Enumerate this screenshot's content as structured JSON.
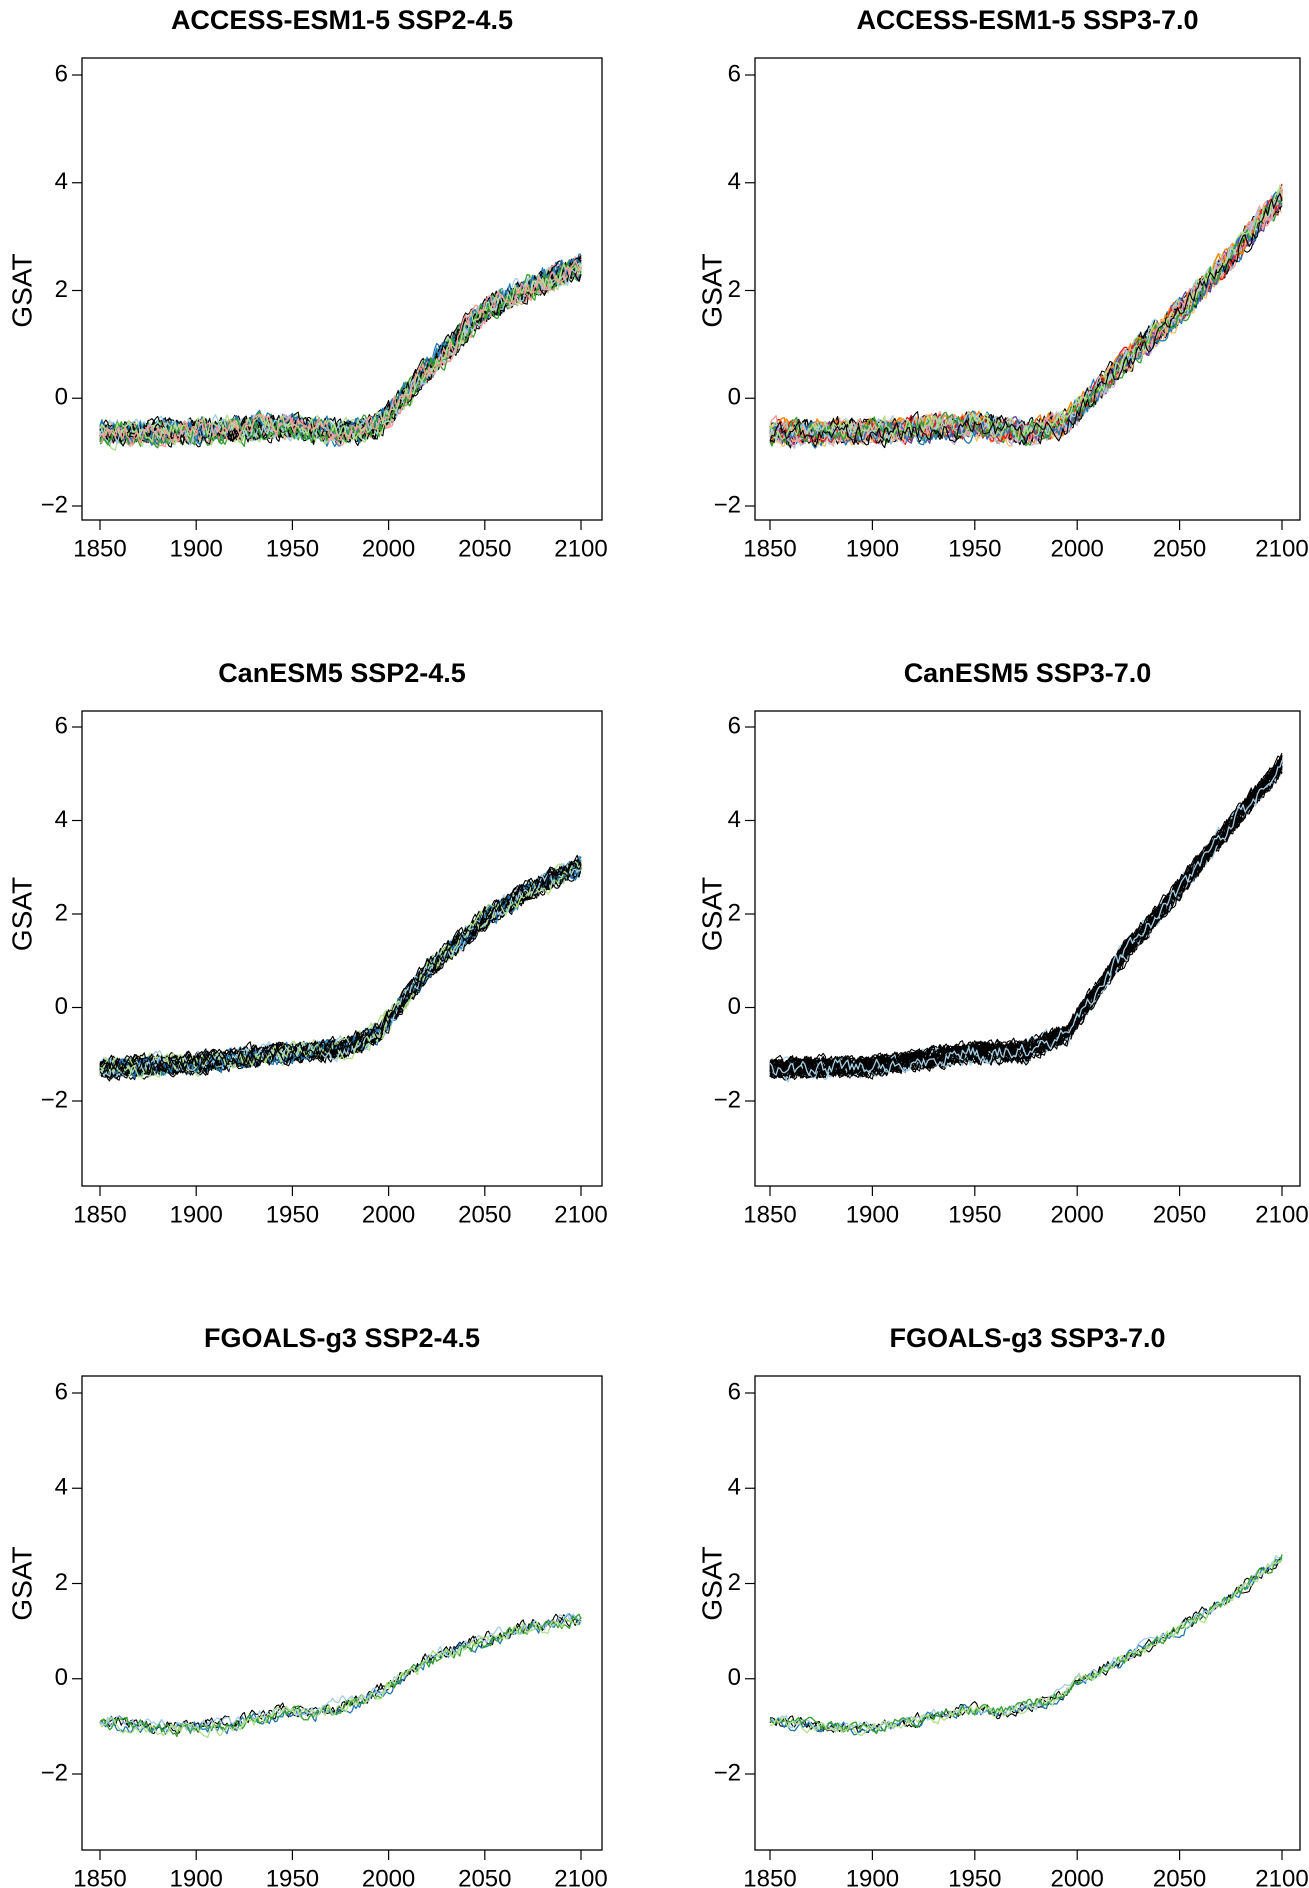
{
  "chart_data": [
    {
      "type": "line",
      "title": "ACCESS-ESM1-5 SSP2-4.5",
      "xlabel": "",
      "ylabel": "GSAT",
      "xlim": [
        1843,
        2110
      ],
      "ylim": [
        -2.3,
        6.3
      ],
      "xticks": [
        1850,
        1900,
        1950,
        2000,
        2050,
        2100
      ],
      "yticks": [
        -2,
        0,
        2,
        4,
        6
      ],
      "xtick_labels": [
        "1850",
        "1900",
        "1950",
        "2000",
        "2050",
        "2100"
      ],
      "ytick_labels": [
        "−2",
        "0",
        "2",
        "4",
        "6"
      ],
      "grid": false,
      "legend": "none",
      "ensemble_count": 40,
      "noise_amplitude": 0.14,
      "trend": {
        "x": [
          1850,
          1900,
          1950,
          1975,
          1995,
          2020,
          2050,
          2075,
          2100
        ],
        "y": [
          -0.65,
          -0.6,
          -0.52,
          -0.65,
          -0.5,
          0.5,
          1.65,
          2.1,
          2.45
        ]
      },
      "series_colors": [
        "#000000",
        "#000000",
        "#000000",
        "#1f78b4",
        "#a6cee3",
        "#33a02c",
        "#b2df8a",
        "#fb9a99"
      ]
    },
    {
      "type": "line",
      "title": "ACCESS-ESM1-5 SSP3-7.0",
      "xlabel": "",
      "ylabel": "GSAT",
      "xlim": [
        1843,
        2110
      ],
      "ylim": [
        -2.3,
        6.3
      ],
      "xticks": [
        1850,
        1900,
        1950,
        2000,
        2050,
        2100
      ],
      "yticks": [
        -2,
        0,
        2,
        4,
        6
      ],
      "xtick_labels": [
        "1850",
        "1900",
        "1950",
        "2000",
        "2050",
        "2100"
      ],
      "ytick_labels": [
        "−2",
        "0",
        "2",
        "4",
        "6"
      ],
      "grid": false,
      "legend": "none",
      "ensemble_count": 40,
      "noise_amplitude": 0.14,
      "trend": {
        "x": [
          1850,
          1900,
          1950,
          1975,
          1995,
          2020,
          2050,
          2075,
          2100
        ],
        "y": [
          -0.65,
          -0.62,
          -0.5,
          -0.65,
          -0.45,
          0.55,
          1.6,
          2.6,
          3.75
        ]
      },
      "series_colors": [
        "#000000",
        "#000000",
        "#000000",
        "#ff7f00",
        "#fdbf6f",
        "#6a3d9a",
        "#cab2d6",
        "#e31a1c",
        "#fb9a99",
        "#1f78b4",
        "#a6cee3",
        "#33a02c",
        "#b2df8a"
      ]
    },
    {
      "type": "line",
      "title": "CanESM5 SSP2-4.5",
      "xlabel": "",
      "ylabel": "GSAT",
      "xlim": [
        1843,
        2110
      ],
      "ylim": [
        -2.3,
        6.3
      ],
      "xticks": [
        1850,
        1900,
        1950,
        2000,
        2050,
        2100
      ],
      "yticks": [
        -2,
        0,
        2,
        4,
        6
      ],
      "xtick_labels": [
        "1850",
        "1900",
        "1950",
        "2000",
        "2050",
        "2100"
      ],
      "ytick_labels": [
        "−2",
        "0",
        "2",
        "4",
        "6"
      ],
      "grid": false,
      "legend": "none",
      "ensemble_count": 50,
      "noise_amplitude": 0.13,
      "trend": {
        "x": [
          1850,
          1900,
          1950,
          1975,
          1995,
          2020,
          2050,
          2075,
          2100
        ],
        "y": [
          -1.3,
          -1.2,
          -0.95,
          -0.9,
          -0.55,
          0.8,
          1.9,
          2.55,
          3.05
        ]
      },
      "series_colors": [
        "#000000",
        "#000000",
        "#000000",
        "#000000",
        "#000000",
        "#1f78b4",
        "#a6cee3",
        "#b2df8a"
      ]
    },
    {
      "type": "line",
      "title": "CanESM5 SSP3-7.0",
      "xlabel": "",
      "ylabel": "GSAT",
      "xlim": [
        1843,
        2110
      ],
      "ylim": [
        -2.3,
        6.3
      ],
      "xticks": [
        1850,
        1900,
        1950,
        2000,
        2050,
        2100
      ],
      "yticks": [
        -2,
        0,
        2,
        4,
        6
      ],
      "xtick_labels": [
        "1850",
        "1900",
        "1950",
        "2000",
        "2050",
        "2100"
      ],
      "ytick_labels": [
        "−2",
        "0",
        "2",
        "4",
        "6"
      ],
      "grid": false,
      "legend": "none",
      "ensemble_count": 50,
      "noise_amplitude": 0.13,
      "trend": {
        "x": [
          1850,
          1900,
          1950,
          1975,
          1995,
          2020,
          2050,
          2075,
          2100
        ],
        "y": [
          -1.3,
          -1.25,
          -0.95,
          -0.95,
          -0.55,
          1.0,
          2.55,
          3.9,
          5.2
        ]
      },
      "series_colors": [
        "#000000",
        "#000000",
        "#000000",
        "#000000",
        "#000000",
        "#000000",
        "#000000",
        "#000000",
        "#000000",
        "#a6cee3"
      ]
    },
    {
      "type": "line",
      "title": "FGOALS-g3 SSP2-4.5",
      "xlabel": "",
      "ylabel": "GSAT",
      "xlim": [
        1843,
        2110
      ],
      "ylim": [
        -2.3,
        6.3
      ],
      "xticks": [
        1850,
        1900,
        1950,
        2000,
        2050,
        2100
      ],
      "yticks": [
        -2,
        0,
        2,
        4,
        6
      ],
      "xtick_labels": [
        "1850",
        "1900",
        "1950",
        "2000",
        "2050",
        "2100"
      ],
      "ytick_labels": [
        "−2",
        "0",
        "2",
        "4",
        "6"
      ],
      "grid": false,
      "legend": "none",
      "ensemble_count": 6,
      "noise_amplitude": 0.1,
      "trend": {
        "x": [
          1850,
          1885,
          1915,
          1945,
          1965,
          1990,
          2000,
          2025,
          2050,
          2075,
          2100
        ],
        "y": [
          -0.9,
          -1.05,
          -1.0,
          -0.7,
          -0.7,
          -0.4,
          -0.15,
          0.5,
          0.8,
          1.1,
          1.25
        ]
      },
      "series_colors": [
        "#000000",
        "#000000",
        "#1f78b4",
        "#a6cee3",
        "#33a02c",
        "#b2df8a"
      ]
    },
    {
      "type": "line",
      "title": "FGOALS-g3 SSP3-7.0",
      "xlabel": "",
      "ylabel": "GSAT",
      "xlim": [
        1843,
        2110
      ],
      "ylim": [
        -2.3,
        6.3
      ],
      "xticks": [
        1850,
        1900,
        1950,
        2000,
        2050,
        2100
      ],
      "yticks": [
        -2,
        0,
        2,
        4,
        6
      ],
      "xtick_labels": [
        "1850",
        "1900",
        "1950",
        "2000",
        "2050",
        "2100"
      ],
      "ytick_labels": [
        "−2",
        "0",
        "2",
        "4",
        "6"
      ],
      "grid": false,
      "legend": "none",
      "ensemble_count": 6,
      "noise_amplitude": 0.09,
      "trend": {
        "x": [
          1850,
          1885,
          1915,
          1945,
          1965,
          1990,
          2000,
          2025,
          2050,
          2075,
          2100
        ],
        "y": [
          -0.9,
          -1.05,
          -0.95,
          -0.65,
          -0.7,
          -0.4,
          -0.05,
          0.45,
          1.05,
          1.7,
          2.55
        ]
      },
      "series_colors": [
        "#000000",
        "#000000",
        "#1f78b4",
        "#a6cee3",
        "#33a02c",
        "#b2df8a"
      ]
    }
  ]
}
